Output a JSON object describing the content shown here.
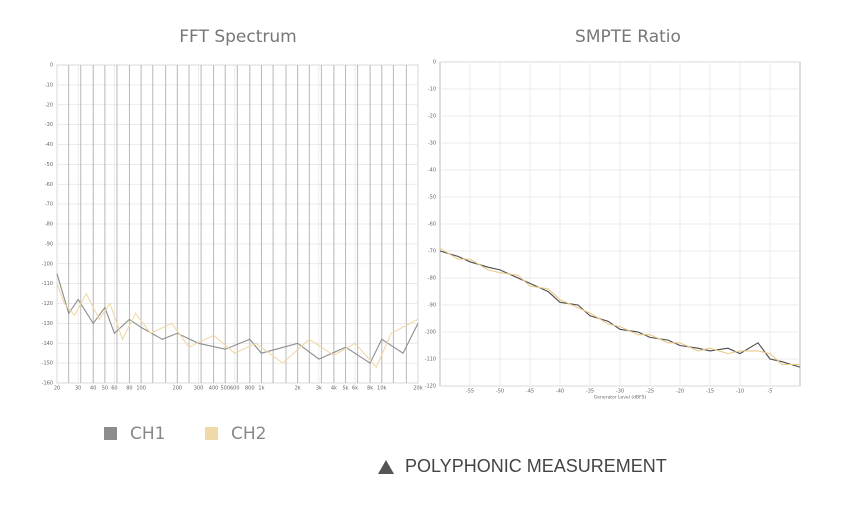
{
  "chart_data": [
    {
      "type": "line",
      "title": "FFT Spectrum",
      "xscale": "log",
      "grid": true,
      "xlim": [
        20,
        20000
      ],
      "ylim": [
        -160,
        0
      ],
      "xticks": [
        20,
        30,
        40,
        50,
        60,
        80,
        100,
        200,
        300,
        400,
        500,
        600,
        800,
        {
          "value": 1000,
          "label": "1k"
        },
        {
          "value": 2000,
          "label": "2k"
        },
        {
          "value": 3000,
          "label": "3k"
        },
        {
          "value": 4000,
          "label": "4k"
        },
        {
          "value": 5000,
          "label": "5k"
        },
        {
          "value": 6000,
          "label": "6k"
        },
        {
          "value": 8000,
          "label": "8k"
        },
        {
          "value": 10000,
          "label": "10k"
        },
        {
          "value": 20000,
          "label": "20k"
        }
      ],
      "yticks": [
        0,
        -10,
        -20,
        -30,
        -40,
        -50,
        -60,
        -70,
        -80,
        -90,
        -100,
        -110,
        -120,
        -130,
        -140,
        -150,
        -160
      ],
      "peaks": {
        "color": "#b8b8b8",
        "x": [
          25,
          31.5,
          40,
          50,
          63,
          80,
          100,
          125,
          160,
          200,
          250,
          315,
          400,
          500,
          630,
          800,
          1000,
          1250,
          1600,
          2000,
          2500,
          3150,
          4000,
          5000,
          6300,
          8000,
          10000,
          12500,
          16000
        ],
        "values": [
          0,
          0,
          0,
          0,
          0,
          0,
          0,
          0,
          0,
          0,
          0,
          0,
          0,
          0,
          0,
          0,
          0,
          0,
          0,
          0,
          0,
          0,
          0,
          0,
          0,
          0,
          0,
          0,
          0
        ]
      },
      "series": [
        {
          "name": "CH1",
          "color": "#8c8c8c",
          "x": [
            20,
            25,
            30,
            40,
            50,
            60,
            80,
            100,
            150,
            200,
            300,
            500,
            800,
            1000,
            2000,
            3000,
            5000,
            8000,
            10000,
            15000,
            20000
          ],
          "values": [
            -105,
            -125,
            -118,
            -130,
            -122,
            -135,
            -128,
            -132,
            -138,
            -135,
            -140,
            -143,
            -138,
            -145,
            -140,
            -148,
            -142,
            -150,
            -138,
            -145,
            -130
          ]
        },
        {
          "name": "CH2",
          "color": "#f0d9a8",
          "x": [
            20,
            23,
            28,
            35,
            45,
            55,
            70,
            90,
            120,
            180,
            250,
            400,
            600,
            900,
            1500,
            2500,
            4000,
            6000,
            9000,
            12000,
            20000
          ],
          "values": [
            -110,
            -120,
            -126,
            -115,
            -128,
            -120,
            -138,
            -125,
            -135,
            -130,
            -142,
            -136,
            -145,
            -140,
            -150,
            -138,
            -146,
            -140,
            -152,
            -135,
            -128
          ]
        }
      ]
    },
    {
      "type": "line",
      "title": "SMPTE Ratio",
      "xlabel": "Generator Level (dBFS)",
      "grid": true,
      "xlim": [
        -60,
        0
      ],
      "ylim": [
        -120,
        0
      ],
      "xticks": [
        -55,
        -50,
        -45,
        -40,
        -35,
        -30,
        -25,
        -20,
        -15,
        -10,
        -5
      ],
      "yticks": [
        0,
        -10,
        -20,
        -30,
        -40,
        -50,
        -60,
        -70,
        -80,
        -90,
        -100,
        -110,
        -120
      ],
      "series": [
        {
          "name": "CH1",
          "color": "#4a4a4a",
          "x": [
            -60,
            -57,
            -55,
            -52,
            -50,
            -47,
            -45,
            -42,
            -40,
            -37,
            -35,
            -32,
            -30,
            -27,
            -25,
            -22,
            -20,
            -17,
            -15,
            -12,
            -10,
            -7,
            -5,
            -3,
            0
          ],
          "values": [
            -70,
            -72,
            -74,
            -76,
            -77,
            -80,
            -82,
            -85,
            -89,
            -90,
            -94,
            -96,
            -99,
            -100,
            -102,
            -103,
            -105,
            -106,
            -107,
            -106,
            -108,
            -104,
            -110,
            -111,
            -113
          ]
        },
        {
          "name": "CH2",
          "color": "#e9c98c",
          "x": [
            -60,
            -57,
            -55,
            -52,
            -50,
            -47,
            -45,
            -42,
            -40,
            -37,
            -35,
            -32,
            -30,
            -27,
            -25,
            -22,
            -20,
            -17,
            -15,
            -12,
            -10,
            -7,
            -5,
            -3,
            0
          ],
          "values": [
            -69,
            -73,
            -73,
            -77,
            -78,
            -79,
            -83,
            -84,
            -88,
            -91,
            -93,
            -97,
            -98,
            -101,
            -101,
            -104,
            -104,
            -107,
            -106,
            -108,
            -107,
            -107,
            -108,
            -112,
            -112
          ]
        }
      ]
    }
  ],
  "caption": "POLYPHONIC MEASUREMENT"
}
